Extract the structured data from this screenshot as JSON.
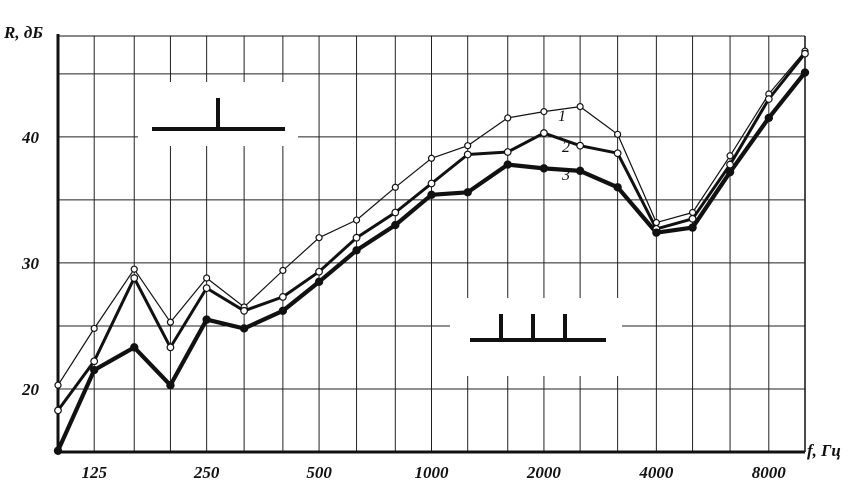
{
  "chart_data": {
    "type": "line",
    "ylabel": "R, дБ",
    "xlabel": "f, Гц",
    "x_scale": "log",
    "xlim": [
      100,
      10000
    ],
    "ylim": [
      15,
      48
    ],
    "grid": true,
    "x_ticks": [
      {
        "value": 125,
        "label": "125"
      },
      {
        "value": 250,
        "label": "250"
      },
      {
        "value": 500,
        "label": "500"
      },
      {
        "value": 1000,
        "label": "1000"
      },
      {
        "value": 2000,
        "label": "2000"
      },
      {
        "value": 4000,
        "label": "4000"
      },
      {
        "value": 8000,
        "label": "8000"
      }
    ],
    "y_ticks": [
      {
        "value": 20,
        "label": "20"
      },
      {
        "value": 30,
        "label": "30"
      },
      {
        "value": 40,
        "label": "40"
      }
    ],
    "x": [
      100,
      125,
      160,
      200,
      250,
      315,
      400,
      500,
      630,
      800,
      1000,
      1250,
      1600,
      2000,
      2500,
      3150,
      4000,
      5000,
      6300,
      8000,
      10000
    ],
    "series": [
      {
        "name": "1",
        "values": [
          20.3,
          24.8,
          29.5,
          25.3,
          28.8,
          26.5,
          29.4,
          32.0,
          33.4,
          36.0,
          38.3,
          39.3,
          41.5,
          42.0,
          42.4,
          40.2,
          33.2,
          34.0,
          38.5,
          43.4,
          46.8
        ]
      },
      {
        "name": "2",
        "values": [
          18.3,
          22.2,
          28.8,
          23.3,
          28.0,
          26.2,
          27.3,
          29.3,
          32.0,
          34.0,
          36.3,
          38.6,
          38.8,
          40.3,
          39.3,
          38.7,
          32.7,
          33.5,
          37.8,
          43.0,
          46.6
        ]
      },
      {
        "name": "3",
        "values": [
          15.1,
          21.5,
          23.3,
          20.3,
          25.5,
          24.8,
          26.2,
          28.5,
          31.0,
          33.0,
          35.4,
          35.6,
          37.8,
          37.5,
          37.3,
          36.0,
          32.4,
          32.8,
          37.2,
          41.5,
          45.1
        ]
      }
    ]
  }
}
